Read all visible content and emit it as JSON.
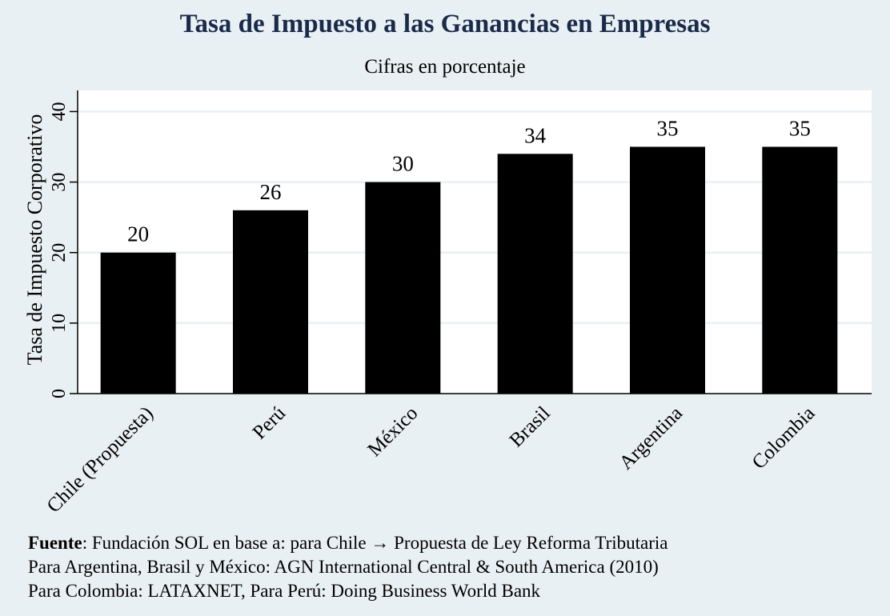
{
  "chart_data": {
    "type": "bar",
    "title": "Tasa de Impuesto a las Ganancias en Empresas",
    "subtitle": "Cifras en porcentaje",
    "xlabel": "",
    "ylabel": "Tasa de Impuesto Corporativo",
    "categories": [
      "Chile (Propuesta)",
      "Perú",
      "México",
      "Brasil",
      "Argentina",
      "Colombia"
    ],
    "values": [
      20,
      26,
      30,
      34,
      35,
      35
    ],
    "data_labels": [
      "20",
      "26",
      "30",
      "34",
      "35",
      "35"
    ],
    "ylim": [
      0,
      43
    ],
    "yticks": [
      0,
      10,
      20,
      30,
      40
    ],
    "grid": true,
    "bar_color": "#000000",
    "plot_background": "#ffffff",
    "page_background": "#e9f0f3",
    "gridline_color": "#e9f0f3",
    "title_color": "#1a2a4a"
  },
  "source": {
    "label": "Fuente",
    "line1": ": Fundación SOL en base a: para Chile → Propuesta de Ley Reforma Tributaria",
    "line2": "Para Argentina, Brasil y México: AGN International Central & South America (2010)",
    "line3": "Para Colombia: LATAXNET, Para Perú: Doing Business World Bank"
  }
}
